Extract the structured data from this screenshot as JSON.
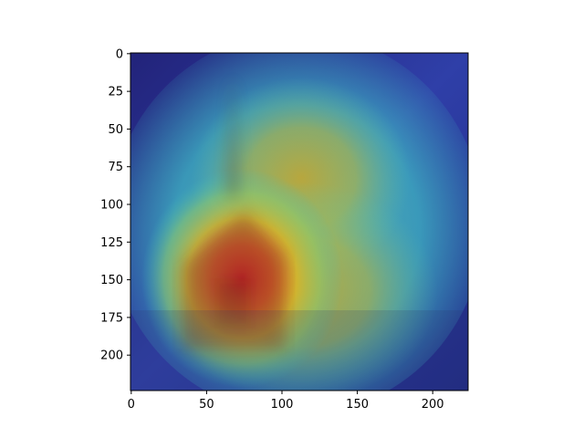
{
  "chart_data": {
    "type": "heatmap",
    "title": "",
    "xlabel": "",
    "ylabel": "",
    "description_note": "",
    "image_size": [
      224,
      224
    ],
    "xlim": [
      -0.5,
      223.5
    ],
    "ylim": [
      223.5,
      -0.5
    ],
    "x_ticks": [
      0,
      50,
      100,
      150,
      200
    ],
    "y_ticks": [
      0,
      25,
      50,
      75,
      100,
      125,
      150,
      175,
      200
    ],
    "colormap": "jet",
    "grid": false,
    "hotspots": [
      {
        "x": 70,
        "y": 150,
        "intensity": 1.0
      },
      {
        "x": 120,
        "y": 160,
        "intensity": 0.75
      },
      {
        "x": 110,
        "y": 80,
        "intensity": 0.55
      }
    ],
    "colors": {
      "deep_blue": "#1a2a8f",
      "cyan": "#3fbfbf",
      "yellow": "#d8c02a",
      "orange": "#e07a24",
      "red": "#c8322a"
    }
  }
}
